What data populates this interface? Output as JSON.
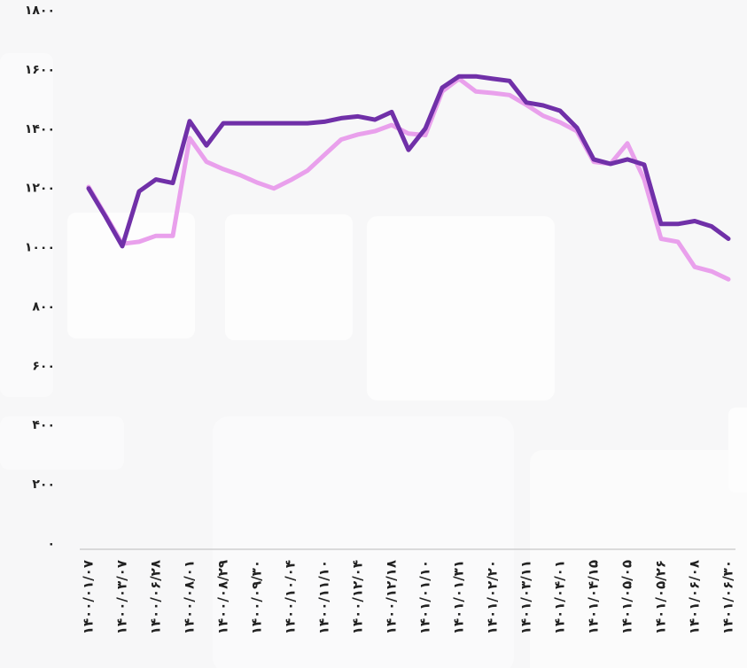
{
  "chart_data": {
    "type": "line",
    "categories": [
      "۱۴۰۰/۰۱/۰۷",
      null,
      "۱۴۰۰/۰۳/۰۷",
      null,
      "۱۴۰۰/۰۶/۲۸",
      null,
      "۱۴۰۰/۰۸/۰۱",
      null,
      "۱۴۰۰/۰۸/۲۹",
      null,
      "۱۴۰۰/۰۹/۳۰",
      null,
      "۱۴۰۰/۱۰/۰۴",
      null,
      "۱۴۰۰/۱۱/۱۰",
      null,
      "۱۴۰۰/۱۲/۰۴",
      null,
      "۱۴۰۰/۱۲/۱۸",
      null,
      "۱۴۰۱/۰۱/۱۰",
      null,
      "۱۴۰۱/۰۱/۳۱",
      null,
      "۱۴۰۱/۰۲/۲۰",
      null,
      "۱۴۰۱/۰۳/۱۱",
      null,
      "۱۴۰۱/۰۴/۰۱",
      null,
      "۱۴۰۱/۰۴/۱۵",
      null,
      "۱۴۰۱/۰۵/۰۵",
      null,
      "۱۴۰۱/۰۵/۲۶",
      null,
      "۱۴۰۱/۰۶/۰۸",
      null,
      "۱۴۰۱/۰۶/۳۰"
    ],
    "series": [
      {
        "color": "#7030a8",
        "values": [
          1200,
          1105,
          1005,
          1190,
          1230,
          1218,
          1427,
          1345,
          1420,
          1420,
          1420,
          1420,
          1420,
          1420,
          1425,
          1437,
          1443,
          1432,
          1458,
          1330,
          1402,
          1540,
          1578,
          1578,
          1570,
          1563,
          1490,
          1480,
          1462,
          1405,
          1298,
          1283,
          1298,
          1280,
          1080,
          1080,
          1090,
          1072,
          1030
        ]
      },
      {
        "color": "#e9a0ec",
        "values": [
          1205,
          1110,
          1013,
          1020,
          1040,
          1040,
          1370,
          1290,
          1265,
          1245,
          1220,
          1200,
          1228,
          1260,
          1313,
          1365,
          1382,
          1393,
          1414,
          1385,
          1380,
          1527,
          1570,
          1527,
          1522,
          1515,
          1482,
          1445,
          1423,
          1393,
          1290,
          1283,
          1352,
          1230,
          1030,
          1020,
          935,
          920,
          893
        ]
      }
    ],
    "ylim": [
      0,
      1800
    ],
    "yticks": [
      {
        "value": 0,
        "label": "۰"
      },
      {
        "value": 200,
        "label": "۲۰۰"
      },
      {
        "value": 400,
        "label": "۴۰۰"
      },
      {
        "value": 600,
        "label": "۶۰۰"
      },
      {
        "value": 800,
        "label": "۸۰۰"
      },
      {
        "value": 1000,
        "label": "۱۰۰۰"
      },
      {
        "value": 1200,
        "label": "۱۲۰۰"
      },
      {
        "value": 1400,
        "label": "۱۴۰۰"
      },
      {
        "value": 1600,
        "label": "۱۶۰۰"
      },
      {
        "value": 1800,
        "label": "۱۸۰۰"
      }
    ],
    "grid": false
  }
}
